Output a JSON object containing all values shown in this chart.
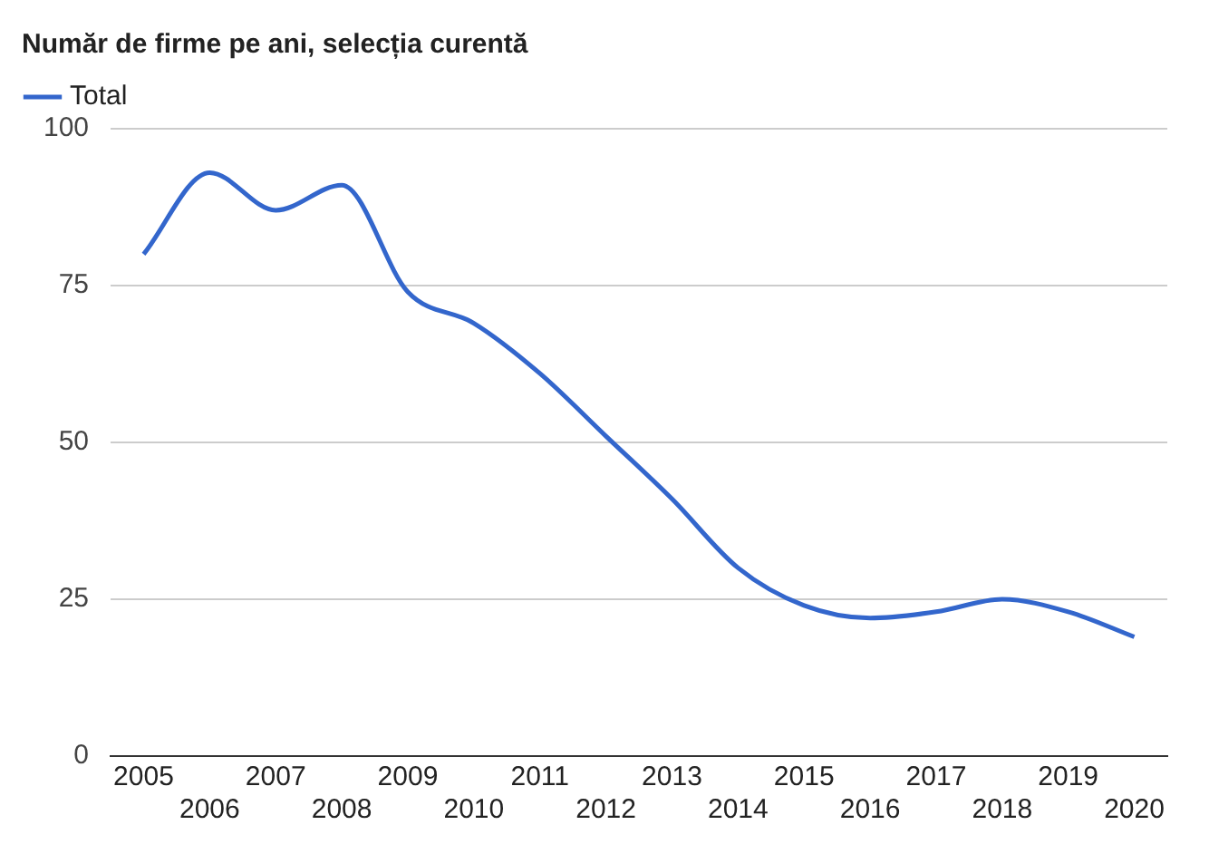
{
  "chart_data": {
    "type": "line",
    "title": "Număr de firme pe ani, selecția curentă",
    "categories": [
      "2005",
      "2006",
      "2007",
      "2008",
      "2009",
      "2010",
      "2011",
      "2012",
      "2013",
      "2014",
      "2015",
      "2016",
      "2017",
      "2018",
      "2019",
      "2020"
    ],
    "series": [
      {
        "name": "Total",
        "color": "#3366cc",
        "values": [
          80,
          93,
          87,
          91,
          74,
          69,
          61,
          51,
          41,
          30,
          24,
          22,
          23,
          25,
          23,
          19
        ]
      }
    ],
    "ylim": [
      0,
      100
    ],
    "yticks": [
      0,
      25,
      50,
      75,
      100
    ],
    "grid": "y",
    "legend": "top left",
    "marker": "none",
    "line_style": "solid"
  }
}
